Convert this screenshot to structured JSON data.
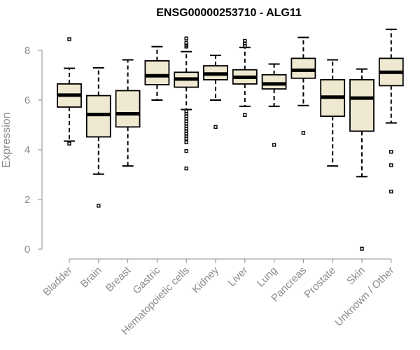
{
  "chart_data": {
    "type": "box",
    "title": "ENSG00000253710 - ALG11",
    "xlabel": "",
    "ylabel": "Expression",
    "ylim": [
      0,
      8.9
    ],
    "yticks": [
      0,
      2,
      4,
      6,
      8
    ],
    "box_fill": "#efe9d1",
    "categories": [
      "Bladder",
      "Brain",
      "Breast",
      "Gastric",
      "Hematopoietic cells",
      "Kidney",
      "Liver",
      "Lung",
      "Pancreas",
      "Prostate",
      "Skin",
      "Unknown / Other"
    ],
    "boxes": [
      {
        "name": "Bladder",
        "whisker_low": 4.35,
        "q1": 5.72,
        "median": 6.2,
        "q3": 6.65,
        "whisker_high": 7.28,
        "outliers": [
          8.45,
          4.25
        ]
      },
      {
        "name": "Brain",
        "whisker_low": 3.02,
        "q1": 4.52,
        "median": 5.42,
        "q3": 6.18,
        "whisker_high": 7.3,
        "outliers": [
          1.75
        ]
      },
      {
        "name": "Breast",
        "whisker_low": 3.35,
        "q1": 4.92,
        "median": 5.45,
        "q3": 6.38,
        "whisker_high": 7.62,
        "outliers": []
      },
      {
        "name": "Gastric",
        "whisker_low": 6.0,
        "q1": 6.62,
        "median": 6.98,
        "q3": 7.58,
        "whisker_high": 8.15,
        "outliers": []
      },
      {
        "name": "Hematopoietic cells",
        "whisker_low": 5.62,
        "q1": 6.52,
        "median": 6.85,
        "q3": 7.12,
        "whisker_high": 7.95,
        "outliers": [
          8.48,
          8.3,
          8.2,
          8.15,
          5.55,
          5.45,
          5.35,
          5.25,
          5.15,
          5.05,
          4.95,
          4.85,
          4.75,
          4.65,
          4.55,
          4.45,
          4.3,
          3.95,
          3.25
        ]
      },
      {
        "name": "Kidney",
        "whisker_low": 6.0,
        "q1": 6.82,
        "median": 7.05,
        "q3": 7.38,
        "whisker_high": 7.8,
        "outliers": [
          4.92
        ]
      },
      {
        "name": "Liver",
        "whisker_low": 5.75,
        "q1": 6.65,
        "median": 6.92,
        "q3": 7.22,
        "whisker_high": 8.12,
        "outliers": [
          8.38,
          8.28,
          8.18,
          5.4
        ]
      },
      {
        "name": "Lung",
        "whisker_low": 5.75,
        "q1": 6.45,
        "median": 6.65,
        "q3": 7.02,
        "whisker_high": 7.45,
        "outliers": [
          4.2
        ]
      },
      {
        "name": "Pancreas",
        "whisker_low": 5.78,
        "q1": 6.88,
        "median": 7.2,
        "q3": 7.68,
        "whisker_high": 8.52,
        "outliers": [
          4.68
        ]
      },
      {
        "name": "Prostate",
        "whisker_low": 3.35,
        "q1": 5.35,
        "median": 6.12,
        "q3": 6.82,
        "whisker_high": 7.62,
        "outliers": []
      },
      {
        "name": "Skin",
        "whisker_low": 2.92,
        "q1": 4.75,
        "median": 6.08,
        "q3": 6.82,
        "whisker_high": 7.25,
        "outliers": [
          0.02
        ]
      },
      {
        "name": "Unknown / Other",
        "whisker_low": 5.08,
        "q1": 6.58,
        "median": 7.12,
        "q3": 7.68,
        "whisker_high": 8.85,
        "outliers": [
          3.92,
          3.38,
          2.32
        ]
      }
    ]
  }
}
